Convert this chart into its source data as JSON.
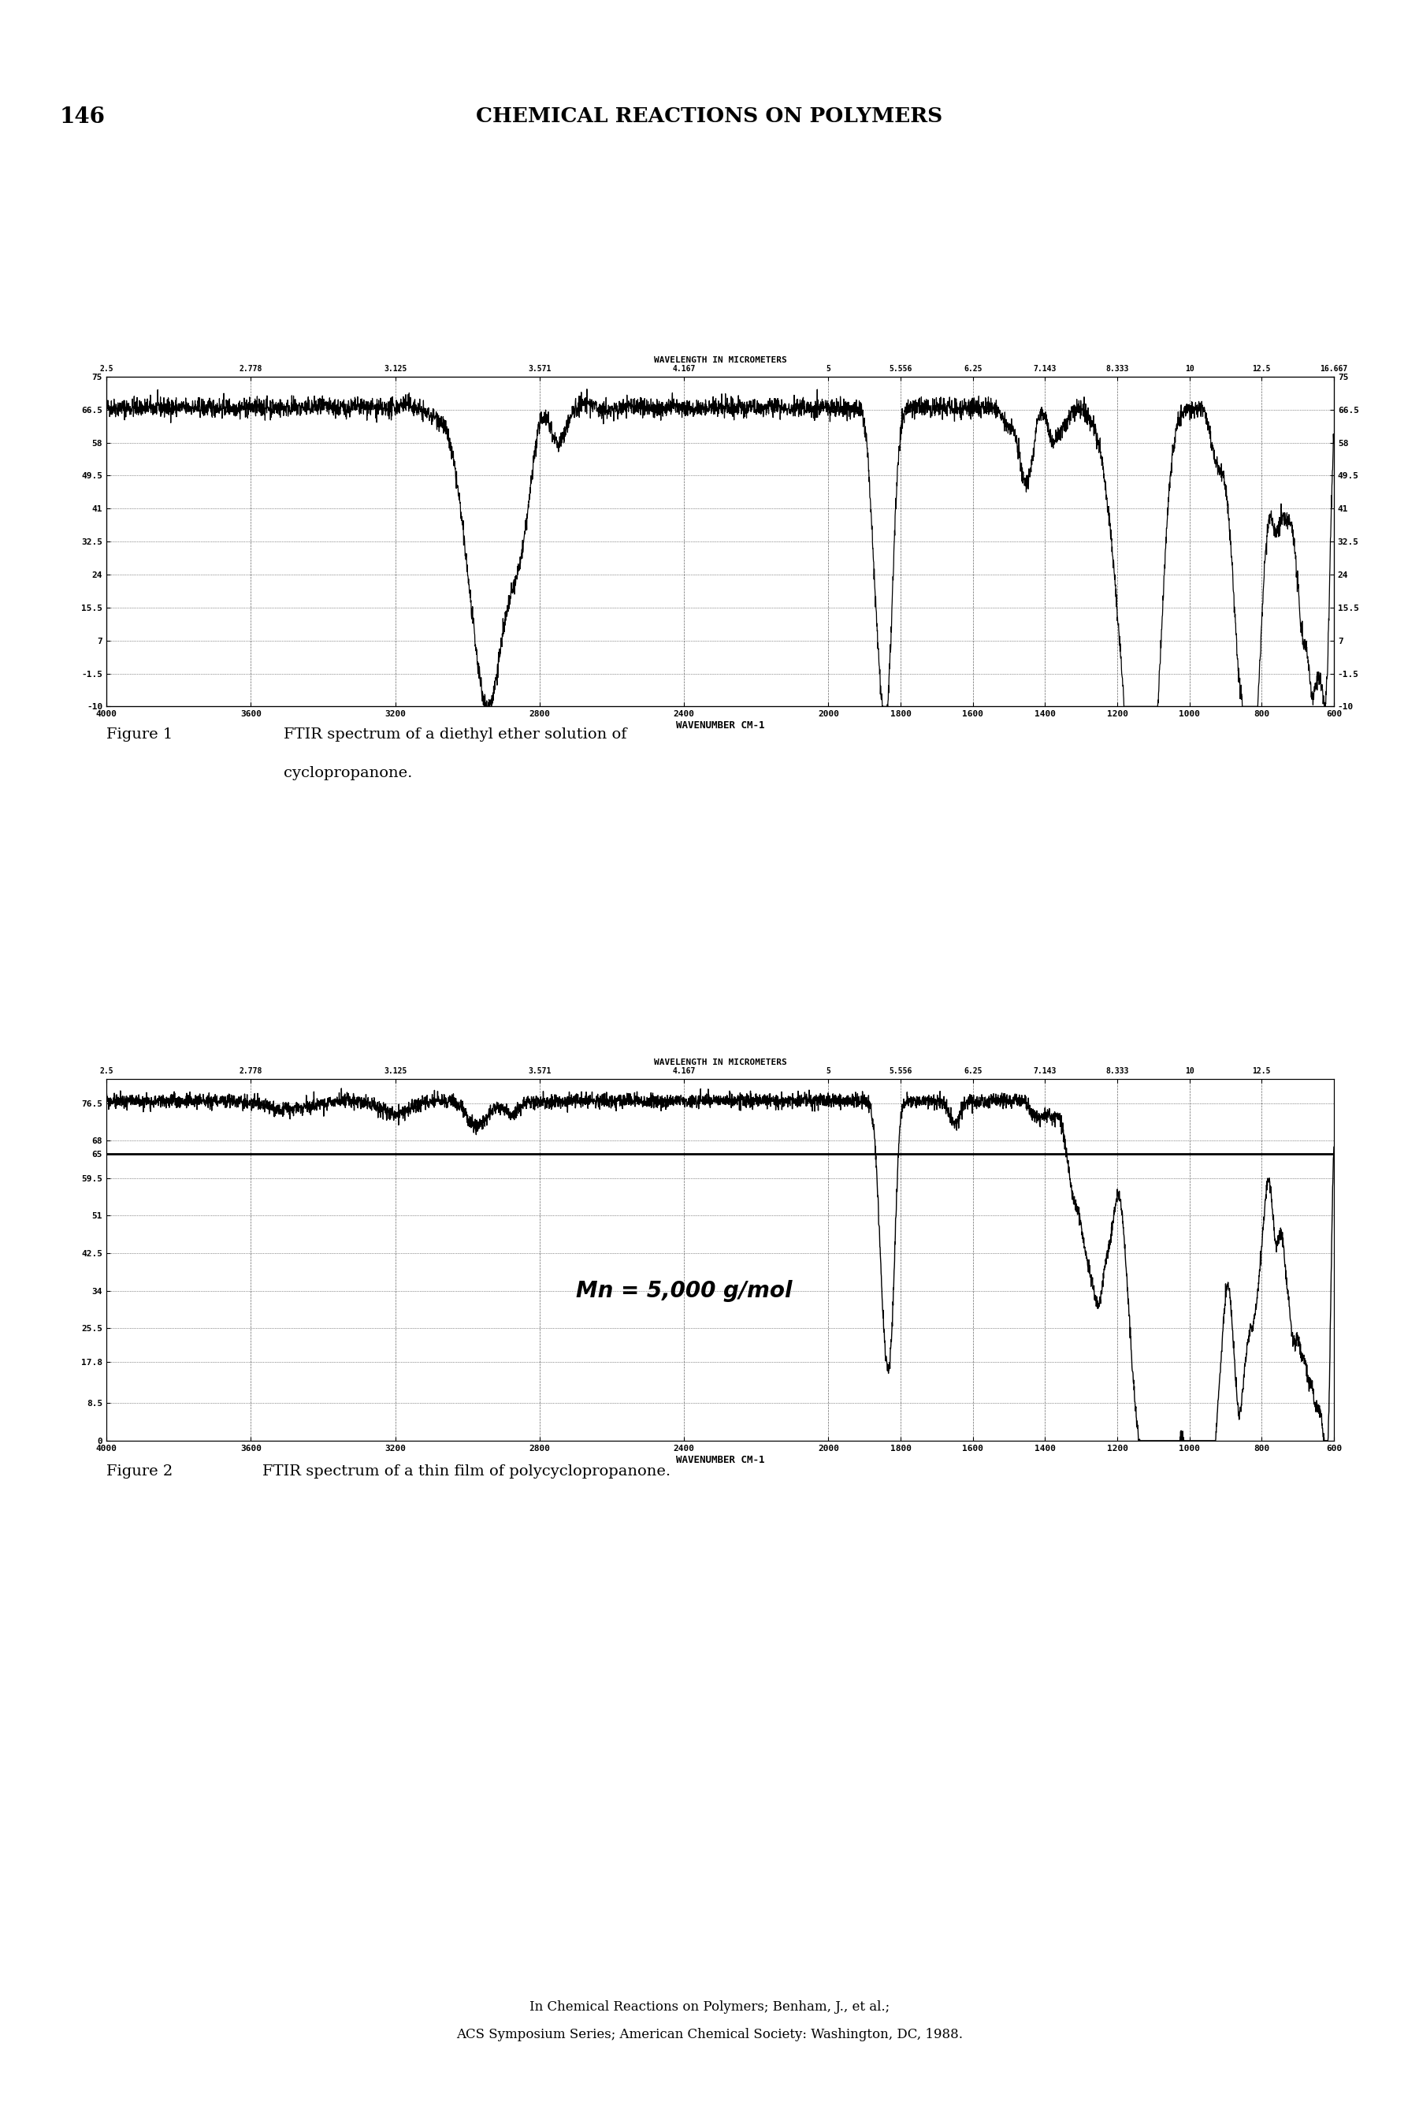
{
  "page_title": "146",
  "page_header": "CHEMICAL REACTIONS ON POLYMERS",
  "footer_line1": "In Chemical Reactions on Polymers; Benham, J., et al.;",
  "footer_line2": "ACS Symposium Series; American Chemical Society: Washington, DC, 1988.",
  "wavelength_top_label": "WAVELENGTH IN MICROMETERS",
  "wavenumber_label": "WAVENUMBER CM-1",
  "fig1_top_ticks_wl": [
    2.5,
    2.778,
    3.125,
    3.571,
    4.167,
    5,
    5.556,
    6.25,
    7.143,
    8.333,
    10,
    12.5,
    16.667
  ],
  "fig1_bottom_ticks": [
    4000,
    3600,
    3200,
    2800,
    2400,
    2000,
    1800,
    1600,
    1400,
    1200,
    1000,
    800,
    600
  ],
  "fig1_yticks": [
    75.0,
    66.5,
    58.0,
    49.5,
    41.0,
    32.5,
    24.0,
    15.5,
    7.0,
    -1.5,
    -10.0
  ],
  "fig1_ylim": [
    -10.0,
    75.0
  ],
  "fig2_top_ticks_wl": [
    2.5,
    2.778,
    3.125,
    3.571,
    4.167,
    5,
    5.556,
    6.25,
    7.143,
    8.333,
    10,
    12.5
  ],
  "fig2_bottom_ticks": [
    4000,
    3600,
    3200,
    2800,
    2400,
    2000,
    1800,
    1600,
    1400,
    1200,
    1000,
    800,
    600
  ],
  "fig2_yticks": [
    65.0,
    76.5,
    68.0,
    59.5,
    51.0,
    42.5,
    34.0,
    25.5,
    17.8,
    8.5,
    0.0
  ],
  "fig2_ylim": [
    0.0,
    82.0
  ],
  "fig2_annotation": "Mn = 5,000 g/mol",
  "fig1_caption_label": "Figure 1",
  "fig1_caption_text1": "FTIR spectrum of a diethyl ether solution of",
  "fig1_caption_text2": "cyclopropanone.",
  "fig2_caption_label": "Figure 2",
  "fig2_caption_text": "FTIR spectrum of a thin film of polycyclopropanone.",
  "background_color": "#ffffff"
}
